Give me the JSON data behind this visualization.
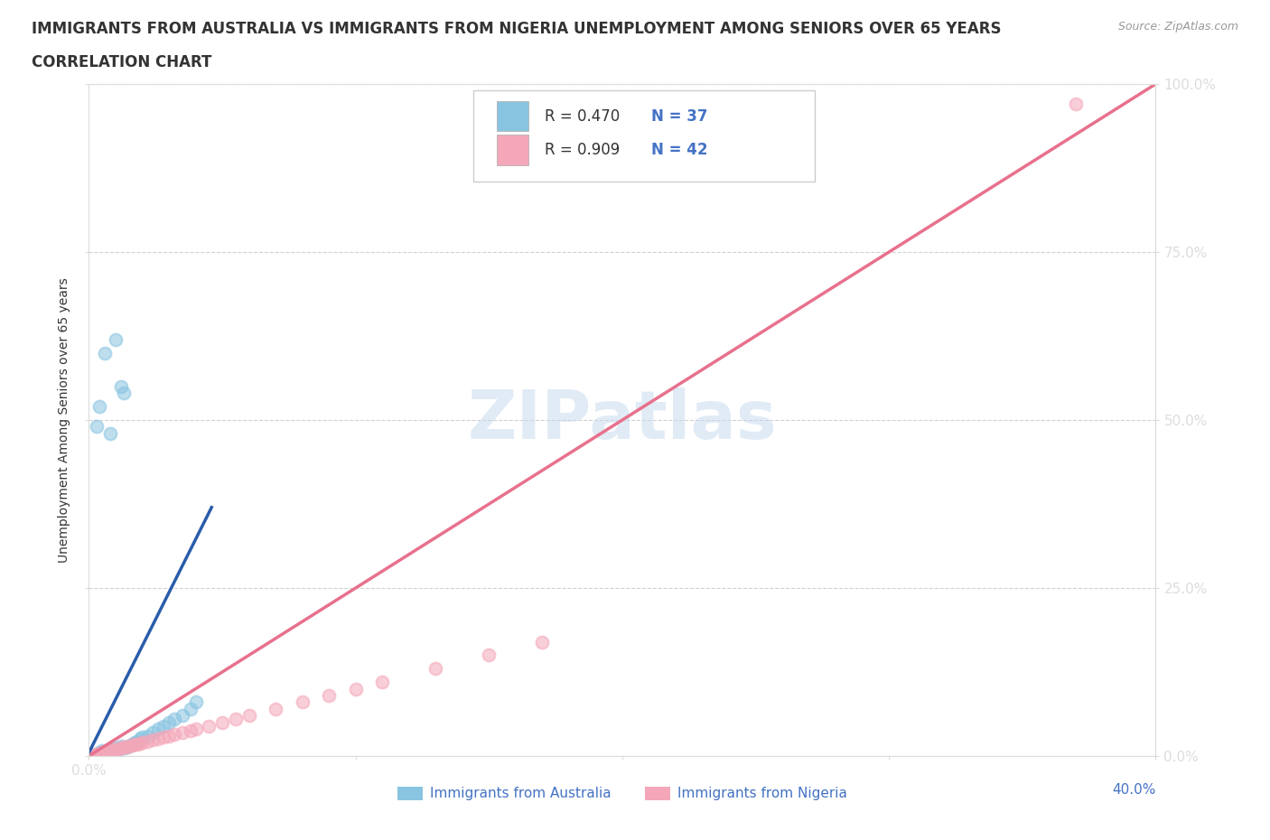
{
  "title_line1": "IMMIGRANTS FROM AUSTRALIA VS IMMIGRANTS FROM NIGERIA UNEMPLOYMENT AMONG SENIORS OVER 65 YEARS",
  "title_line2": "CORRELATION CHART",
  "source": "Source: ZipAtlas.com",
  "ylabel": "Unemployment Among Seniors over 65 years",
  "y_tick_labels": [
    "0.0%",
    "25.0%",
    "50.0%",
    "75.0%",
    "100.0%"
  ],
  "y_ticks": [
    0.0,
    0.25,
    0.5,
    0.75,
    1.0
  ],
  "watermark": "ZIPatlas",
  "legend_r1": "R = 0.470",
  "legend_n1": "N = 37",
  "legend_r2": "R = 0.909",
  "legend_n2": "N = 42",
  "legend_label1": "Immigrants from Australia",
  "legend_label2": "Immigrants from Nigeria",
  "color_australia": "#89c4e1",
  "color_nigeria": "#f4a7b9",
  "color_trend_australia": "#2a5caa",
  "color_trend_nigeria": "#e8718d",
  "color_diagonal": "#b0c4de",
  "xlim": [
    0.0,
    0.4
  ],
  "ylim": [
    0.0,
    1.0
  ],
  "title_color": "#333333",
  "title_fontsize": 12.0,
  "tick_color": "#4472c4",
  "grid_color": "#cccccc",
  "background_color": "#ffffff",
  "aus_scatter_x": [
    0.002,
    0.003,
    0.004,
    0.004,
    0.005,
    0.005,
    0.006,
    0.007,
    0.008,
    0.009,
    0.01,
    0.011,
    0.012,
    0.013,
    0.014,
    0.015,
    0.016,
    0.017,
    0.018,
    0.019,
    0.02,
    0.022,
    0.024,
    0.026,
    0.028,
    0.03,
    0.032,
    0.035,
    0.038,
    0.04,
    0.003,
    0.004,
    0.006,
    0.008,
    0.01,
    0.012,
    0.013
  ],
  "aus_scatter_y": [
    0.002,
    0.003,
    0.002,
    0.005,
    0.003,
    0.008,
    0.005,
    0.006,
    0.01,
    0.008,
    0.012,
    0.01,
    0.015,
    0.012,
    0.014,
    0.015,
    0.018,
    0.02,
    0.022,
    0.025,
    0.028,
    0.03,
    0.035,
    0.04,
    0.045,
    0.05,
    0.055,
    0.06,
    0.07,
    0.08,
    0.49,
    0.52,
    0.6,
    0.48,
    0.62,
    0.55,
    0.54
  ],
  "nig_scatter_x": [
    0.002,
    0.003,
    0.004,
    0.005,
    0.005,
    0.006,
    0.007,
    0.008,
    0.009,
    0.01,
    0.011,
    0.012,
    0.013,
    0.014,
    0.015,
    0.016,
    0.017,
    0.018,
    0.019,
    0.02,
    0.022,
    0.024,
    0.026,
    0.028,
    0.03,
    0.032,
    0.035,
    0.038,
    0.04,
    0.045,
    0.05,
    0.055,
    0.06,
    0.07,
    0.08,
    0.09,
    0.1,
    0.11,
    0.13,
    0.15,
    0.17,
    0.37
  ],
  "nig_scatter_y": [
    0.002,
    0.003,
    0.004,
    0.005,
    0.002,
    0.006,
    0.007,
    0.008,
    0.009,
    0.01,
    0.011,
    0.012,
    0.013,
    0.014,
    0.015,
    0.016,
    0.017,
    0.018,
    0.019,
    0.02,
    0.022,
    0.024,
    0.026,
    0.028,
    0.03,
    0.032,
    0.035,
    0.038,
    0.04,
    0.045,
    0.05,
    0.055,
    0.06,
    0.07,
    0.08,
    0.09,
    0.1,
    0.11,
    0.13,
    0.15,
    0.17,
    0.97
  ],
  "aus_trend_x0": 0.0,
  "aus_trend_x1": 0.046,
  "aus_trend_y0": 0.005,
  "aus_trend_y1": 0.37,
  "nig_trend_x0": 0.0,
  "nig_trend_x1": 0.4,
  "nig_trend_y0": 0.0,
  "nig_trend_y1": 1.0
}
